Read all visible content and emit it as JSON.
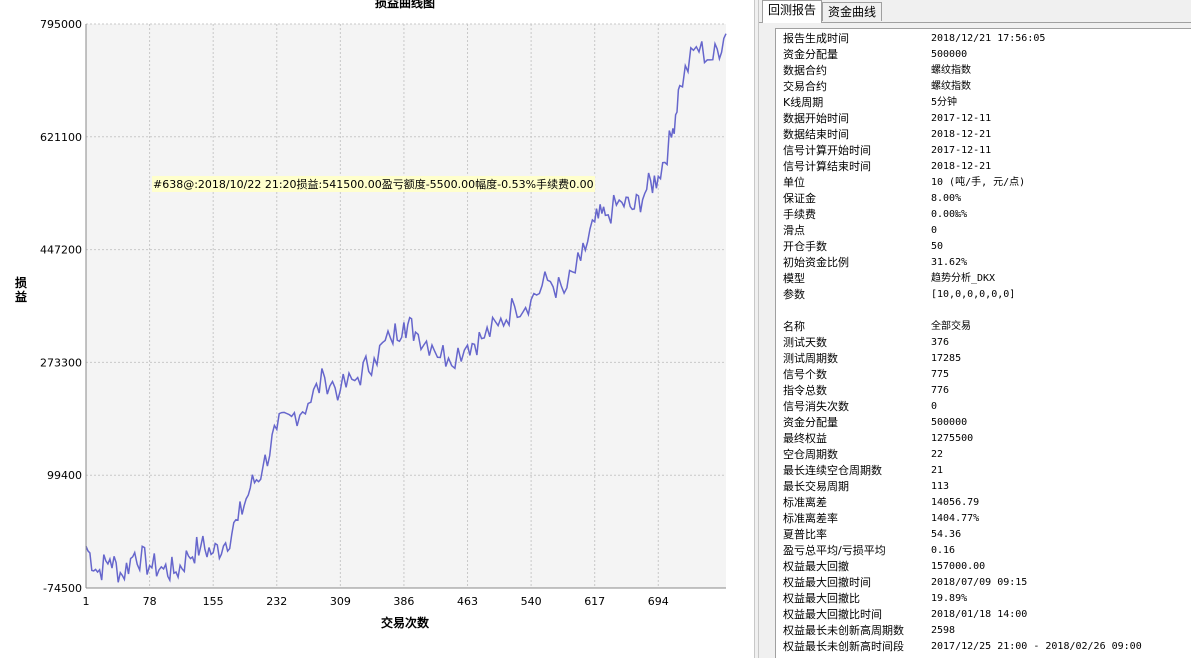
{
  "chart": {
    "title": "损益曲线图",
    "xlabel": "交易次数",
    "ylabel": "损益",
    "tooltip": "#638@:2018/10/22 21:20损益:541500.00盈亏额度-5500.00幅度-0.53%手续费0.00",
    "line_color": "#6666cc",
    "plot_bg": "#f4f4f4"
  },
  "chart_data": {
    "type": "line",
    "title": "损益曲线图",
    "xlabel": "交易次数",
    "ylabel": "损益",
    "xticks": [
      "1",
      "78",
      "155",
      "232",
      "309",
      "386",
      "463",
      "540",
      "617",
      "694"
    ],
    "yticks": [
      "795000",
      "621100",
      "447200",
      "273300",
      "99400",
      "-74500"
    ],
    "xlim": [
      1,
      776
    ],
    "ylim": [
      -74500,
      795000
    ],
    "grid": true,
    "series": [
      {
        "x": [
          1,
          15,
          30,
          45,
          60,
          78,
          95,
          110,
          125,
          140,
          155,
          170,
          185,
          200,
          215,
          232,
          250,
          270,
          290,
          309,
          330,
          350,
          370,
          386,
          400,
          420,
          440,
          463,
          480,
          500,
          520,
          540,
          560,
          580,
          600,
          617,
          630,
          650,
          665,
          680,
          694,
          710,
          720,
          740,
          760,
          776
        ],
        "y": [
          -10000,
          -50000,
          -30000,
          -55000,
          -20000,
          -40000,
          -45000,
          -50000,
          -25000,
          -10000,
          -20000,
          -5000,
          30000,
          80000,
          110000,
          170000,
          190000,
          210000,
          250000,
          230000,
          250000,
          280000,
          310000,
          335000,
          320000,
          300000,
          280000,
          300000,
          310000,
          330000,
          360000,
          370000,
          400000,
          380000,
          430000,
          490000,
          500000,
          520000,
          510000,
          540000,
          560000,
          620000,
          700000,
          760000,
          740000,
          780000
        ]
      }
    ]
  },
  "right_panel": {
    "tabs": [
      {
        "label": "回测报告",
        "active": true
      },
      {
        "label": "资金曲线",
        "active": false
      }
    ],
    "rows": [
      {
        "k": "报告生成时间",
        "v": "2018/12/21 17:56:05"
      },
      {
        "k": "资金分配量",
        "v": "500000"
      },
      {
        "k": "数据合约",
        "v": "螺纹指数"
      },
      {
        "k": "交易合约",
        "v": "螺纹指数"
      },
      {
        "k": "K线周期",
        "v": "5分钟"
      },
      {
        "k": "数据开始时间",
        "v": "2017-12-11"
      },
      {
        "k": "数据结束时间",
        "v": "2018-12-21"
      },
      {
        "k": "信号计算开始时间",
        "v": "2017-12-11"
      },
      {
        "k": "信号计算结束时间",
        "v": "2018-12-21"
      },
      {
        "k": "单位",
        "v": "10 (吨/手, 元/点)"
      },
      {
        "k": "保证金",
        "v": "8.00%"
      },
      {
        "k": "手续费",
        "v": "0.00‰%"
      },
      {
        "k": "滑点",
        "v": "0"
      },
      {
        "k": "开仓手数",
        "v": "50"
      },
      {
        "k": "初始资金比例",
        "v": "31.62%"
      },
      {
        "k": "模型",
        "v": "趋势分析_DKX"
      },
      {
        "k": "参数",
        "v": "[10,0,0,0,0,0]"
      },
      {
        "k": "",
        "v": ""
      },
      {
        "k": "名称",
        "v": "全部交易"
      },
      {
        "k": "测试天数",
        "v": "376"
      },
      {
        "k": "测试周期数",
        "v": "17285"
      },
      {
        "k": "信号个数",
        "v": "775"
      },
      {
        "k": "指令总数",
        "v": "776"
      },
      {
        "k": "信号消失次数",
        "v": "0"
      },
      {
        "k": "资金分配量",
        "v": "500000"
      },
      {
        "k": "最终权益",
        "v": "1275500"
      },
      {
        "k": "空仓周期数",
        "v": "22"
      },
      {
        "k": "最长连续空仓周期数",
        "v": "21"
      },
      {
        "k": "最长交易周期",
        "v": "113"
      },
      {
        "k": "标准离差",
        "v": "14056.79"
      },
      {
        "k": "标准离差率",
        "v": "1404.77%"
      },
      {
        "k": "夏普比率",
        "v": "54.36"
      },
      {
        "k": "盈亏总平均/亏损平均",
        "v": "0.16"
      },
      {
        "k": "权益最大回撤",
        "v": "157000.00"
      },
      {
        "k": "权益最大回撤时间",
        "v": "2018/07/09 09:15"
      },
      {
        "k": "权益最大回撤比",
        "v": "19.89%"
      },
      {
        "k": "权益最大回撤比时间",
        "v": "2018/01/18 14:00"
      },
      {
        "k": "权益最长未创新高周期数",
        "v": "2598"
      },
      {
        "k": "权益最长未创新高时间段",
        "v": "2017/12/25 21:00 - 2018/02/26 09:00"
      }
    ]
  }
}
